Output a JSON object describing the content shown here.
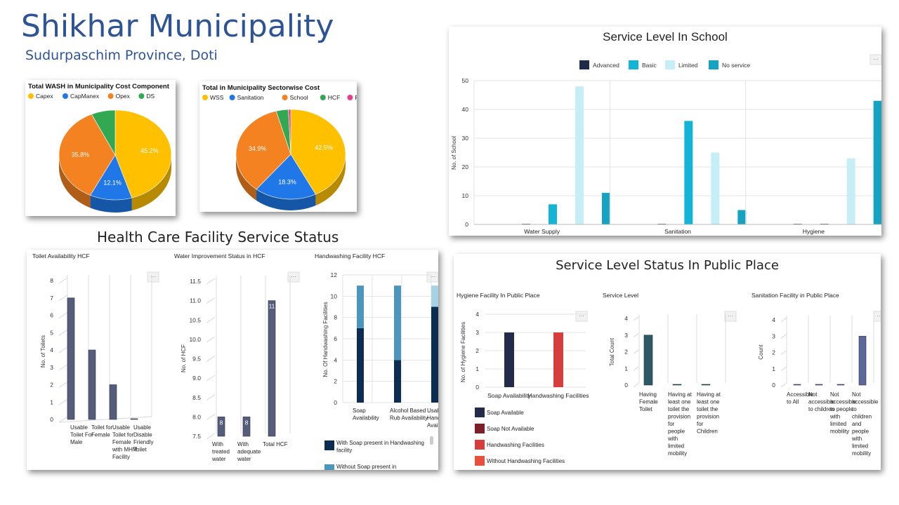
{
  "page": {
    "title": "Shikhar Municipality",
    "subtitle": "Sudurpaschim Province, Doti",
    "hcf_heading": "Health Care Facility Service Status"
  },
  "chart_data": [
    {
      "id": "wash_cost",
      "type": "pie",
      "title": "Total WASH in Municipality Cost Component",
      "labels": [
        "Capex",
        "CapManex",
        "Opex",
        "DS"
      ],
      "values": [
        45.2,
        12.1,
        35.8,
        6.9
      ],
      "value_labels": [
        "45.2%",
        "12.1%",
        "35.8%",
        ""
      ],
      "colors": [
        "#ffc000",
        "#1f77e8",
        "#f58220",
        "#33a852"
      ]
    },
    {
      "id": "sector_cost",
      "type": "pie",
      "title": "Total in Municipality Sectorwise Cost",
      "labels": [
        "WSS",
        "Sanitation",
        "School",
        "HCF",
        "PP"
      ],
      "values": [
        42.5,
        18.3,
        34.9,
        3.6,
        0.7
      ],
      "value_labels": [
        "42.5%",
        "18.3%",
        "34.9%",
        "",
        ""
      ],
      "colors": [
        "#ffc000",
        "#1f77e8",
        "#f58220",
        "#33a852",
        "#e83e8c"
      ]
    },
    {
      "id": "school",
      "type": "bar",
      "title": "Service Level In School",
      "categories": [
        "Water Supply",
        "Sanitation",
        "Hygiene"
      ],
      "series": [
        {
          "name": "Advanced",
          "values": [
            0,
            0,
            0
          ],
          "color": "#1e2a4a"
        },
        {
          "name": "Basic",
          "values": [
            7,
            36,
            0
          ],
          "color": "#13b5d6"
        },
        {
          "name": "Limited",
          "values": [
            48,
            25,
            23
          ],
          "color": "#c6eef6"
        },
        {
          "name": "No service",
          "values": [
            11,
            5,
            43
          ],
          "color": "#16a3c2"
        }
      ],
      "ylabel": "No. of School",
      "ylim": [
        0,
        50
      ],
      "yticks": [
        0,
        10,
        20,
        30,
        40,
        50
      ]
    },
    {
      "id": "toilet_hcf",
      "type": "bar",
      "title": "Toilet Availability HCF",
      "categories": [
        [
          "Usable",
          "Toilet For",
          "Male"
        ],
        [
          "Toilet for",
          "Female"
        ],
        [
          "Usable",
          "Toilet for",
          "Female",
          "with MHM",
          "Facility"
        ],
        [
          "Usable",
          "Disable",
          "Friendly",
          "Toilet"
        ]
      ],
      "values": [
        7,
        4,
        2,
        0
      ],
      "ylabel": "No. of Toilets",
      "ylim": [
        0,
        8
      ],
      "yticks": [
        0,
        1,
        2,
        3,
        4,
        5,
        6,
        7,
        8
      ]
    },
    {
      "id": "water_hcf",
      "type": "bar",
      "title": "Water Improvement Status in HCF",
      "categories": [
        [
          "With",
          "treated",
          "water"
        ],
        [
          "With",
          "adequate",
          "water"
        ],
        [
          "Total HCF"
        ]
      ],
      "values": [
        8,
        8,
        11
      ],
      "value_labels": [
        "8",
        "8",
        "11"
      ],
      "ylabel": "No. of HCF",
      "ylim": [
        7.5,
        11.5
      ],
      "yticks": [
        "7.5",
        "8.0",
        "8.5",
        "9.0",
        "9.5",
        "10.0",
        "10.5",
        "11.0",
        "11.5"
      ]
    },
    {
      "id": "handwash_hcf",
      "type": "bar",
      "title": "Handwashing Facility HCF",
      "categories": [
        [
          "Soap",
          "Availability"
        ],
        [
          "Alcohol Based",
          "Rub Availability"
        ],
        [
          "Usable",
          "Handwashing",
          "Availability"
        ]
      ],
      "series": [
        {
          "name": "With Soap present in Handwashing facility",
          "values": [
            7,
            4,
            9
          ],
          "color": "#0c2d4f"
        },
        {
          "name": "Without Soap present in",
          "values": [
            4,
            7,
            2
          ],
          "color": "#4c96bd"
        }
      ],
      "ylabel": "No. Of Handwashing Facilities",
      "ylim": [
        0,
        12
      ],
      "yticks": [
        0,
        2,
        4,
        6,
        8,
        10,
        12
      ]
    },
    {
      "id": "hygiene_pp",
      "type": "bar",
      "title": "Hygiene Facility In Public Place",
      "categories": [
        "Soap Availability",
        "Handwashing Facilities"
      ],
      "values": [
        3,
        3
      ],
      "colors": [
        "#232b4a",
        "#d63d3d"
      ],
      "legend": [
        {
          "name": "Soap Available",
          "color": "#232b4a"
        },
        {
          "name": "Soap Not Available",
          "color": "#7d1f2a"
        },
        {
          "name": "Handwashing Facilities",
          "color": "#d63d3d"
        },
        {
          "name": "Without Handwashing Facilities",
          "color": "#e8503e"
        }
      ],
      "ylabel": "No. of Hygiene Facilities",
      "ylim": [
        0,
        4
      ],
      "yticks": [
        0,
        1,
        2,
        3,
        4
      ]
    },
    {
      "id": "service_level_pp",
      "type": "bar",
      "title": "Service Level",
      "categories": [
        [
          "Having",
          "Female",
          "Toilet"
        ],
        [
          "Having at",
          "least one",
          "toilet the",
          "provision",
          "for",
          "people",
          "with",
          "limited",
          "mobility"
        ],
        [
          "Having at",
          "least one",
          "toilet the",
          "provision",
          "for",
          "Children"
        ]
      ],
      "values": [
        3,
        0,
        0
      ],
      "ylabel": "Total Count",
      "ylim": [
        0,
        4
      ],
      "yticks": [
        0,
        1,
        2,
        3,
        4
      ]
    },
    {
      "id": "sanitation_pp",
      "type": "bar",
      "title": "Sanitation Facility in Public Place",
      "categories": [
        [
          "Accessible",
          "to All"
        ],
        [
          "Not",
          "accessible",
          "to children"
        ],
        [
          "Not",
          "accessible",
          "to people",
          "with",
          "limited",
          "mobility"
        ],
        [
          "Not",
          "accessible",
          "to",
          "children",
          "and",
          "people",
          "with",
          "limited",
          "mobility"
        ]
      ],
      "values": [
        0,
        0,
        0,
        3
      ],
      "ylabel": "Count",
      "ylim": [
        0,
        4
      ],
      "yticks": [
        0,
        1,
        2,
        3,
        4
      ]
    }
  ],
  "public_place": {
    "heading": "Service Level Status In Public Place"
  }
}
